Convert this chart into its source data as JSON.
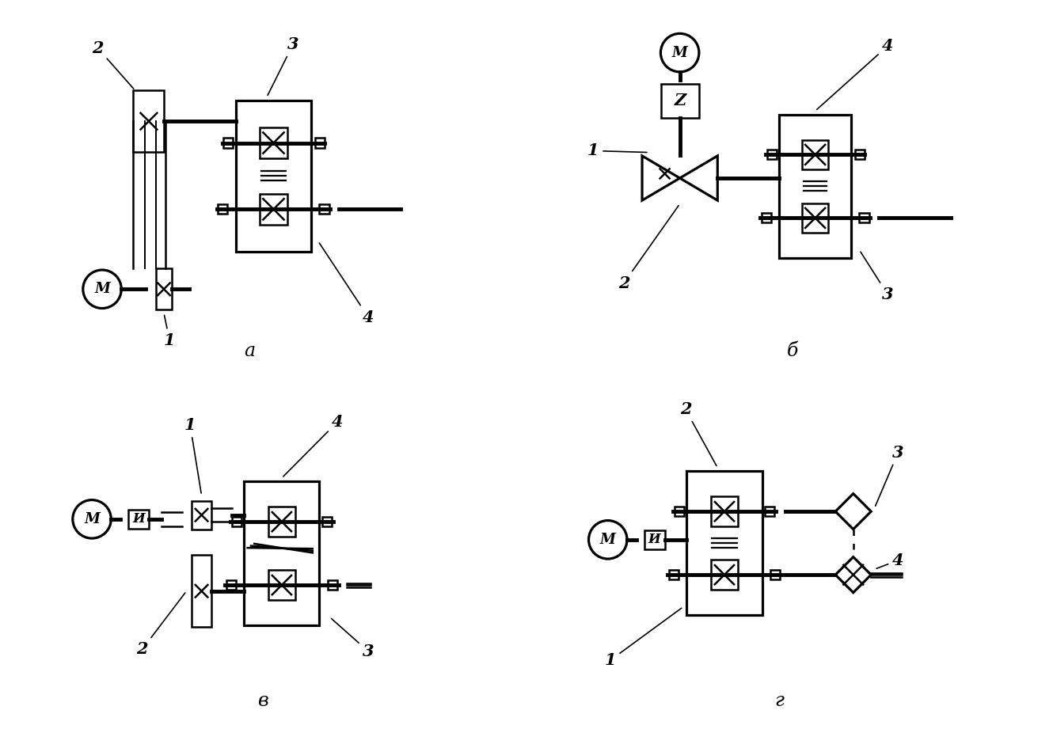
{
  "bg_color": "#ffffff",
  "lc": "#000000",
  "lw": 1.8,
  "lwt": 3.5,
  "title_a": "а",
  "title_b": "б",
  "title_v": "в",
  "title_g": "г"
}
